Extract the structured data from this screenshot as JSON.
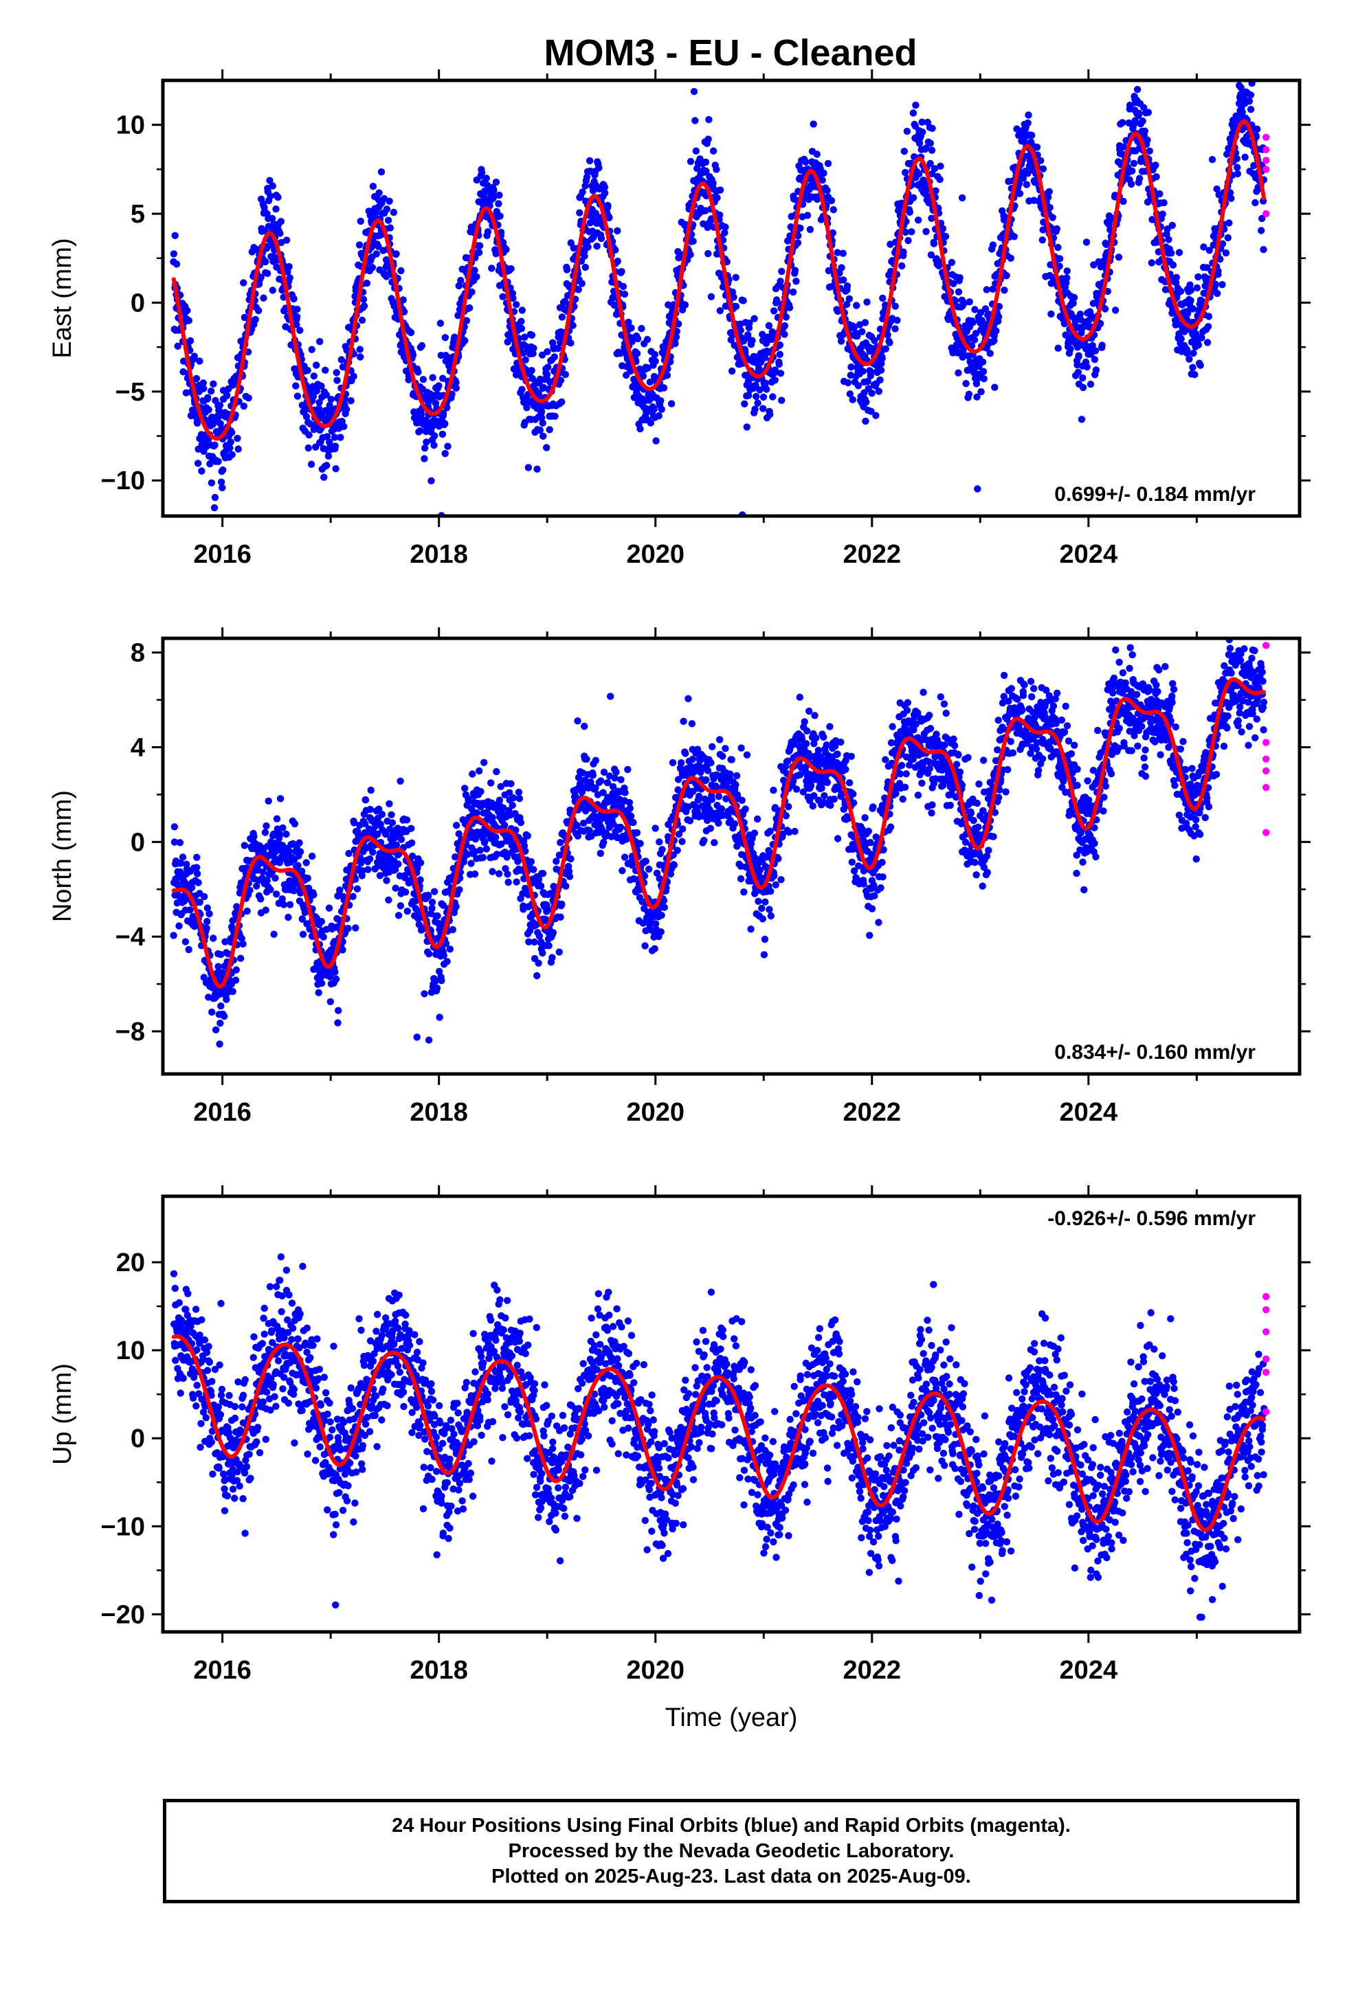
{
  "chart_data": [
    {
      "type": "scatter",
      "title": "MOM3  - EU - Cleaned",
      "ylabel": "East (mm)",
      "xlabel": "",
      "xlim": [
        2015.45,
        2025.95
      ],
      "ylim": [
        -12,
        12.5
      ],
      "yticks": [
        -10,
        -5,
        0,
        5,
        10
      ],
      "yticklabels": [
        "−10",
        "−5",
        "0",
        "5",
        "10"
      ],
      "xticks": [
        2016,
        2018,
        2020,
        2022,
        2024
      ],
      "xticklabels": [
        "2016",
        "2018",
        "2020",
        "2022",
        "2024"
      ],
      "annotation": "0.699+/- 0.184 mm/yr",
      "annotation_position": "bottom-right",
      "model": {
        "start": 2015.55,
        "end": 2025.62,
        "offset": -3.0,
        "rate": 0.699,
        "amp1": 5.6,
        "phase1": 0.44,
        "amp2": 0.7,
        "phase2": 0.3,
        "t0": 2015.55
      },
      "noise_sd": 1.35,
      "outlier_sd": 3.0,
      "final_count": 3300,
      "rapid_points": [
        {
          "x": 2025.64,
          "y": 9.3
        },
        {
          "x": 2025.64,
          "y": 8.6
        },
        {
          "x": 2025.64,
          "y": 8.0
        },
        {
          "x": 2025.64,
          "y": 7.5
        },
        {
          "x": 2025.64,
          "y": 5.0
        }
      ],
      "legend": "none",
      "grid": false
    },
    {
      "type": "scatter",
      "title": "",
      "ylabel": "North (mm)",
      "xlabel": "",
      "xlim": [
        2015.45,
        2025.95
      ],
      "ylim": [
        -9.8,
        8.6
      ],
      "yticks": [
        -8,
        -4,
        0,
        4,
        8
      ],
      "yticklabels": [
        "−8",
        "−4",
        "0",
        "4",
        "8"
      ],
      "xticks": [
        2016,
        2018,
        2020,
        2022,
        2024
      ],
      "xticklabels": [
        "2016",
        "2018",
        "2020",
        "2022",
        "2024"
      ],
      "annotation": "0.834+/- 0.160 mm/yr",
      "annotation_position": "bottom-right",
      "model": {
        "start": 2015.55,
        "end": 2025.62,
        "offset": -3.3,
        "rate": 0.834,
        "amp1": 2.3,
        "phase1": 0.46,
        "amp2": 0.9,
        "phase2": 0.12,
        "t0": 2015.55
      },
      "noise_sd": 0.95,
      "outlier_sd": 2.2,
      "final_count": 3300,
      "rapid_points": [
        {
          "x": 2025.64,
          "y": 8.3
        },
        {
          "x": 2025.64,
          "y": 4.2
        },
        {
          "x": 2025.64,
          "y": 3.5
        },
        {
          "x": 2025.64,
          "y": 3.0
        },
        {
          "x": 2025.64,
          "y": 2.3
        },
        {
          "x": 2025.64,
          "y": 0.4
        }
      ],
      "legend": "none",
      "grid": false
    },
    {
      "type": "scatter",
      "title": "",
      "ylabel": "Up (mm)",
      "xlabel": "Time (year)",
      "xlim": [
        2015.45,
        2025.95
      ],
      "ylim": [
        -22,
        27.5
      ],
      "yticks": [
        -20,
        -10,
        0,
        10,
        20
      ],
      "yticklabels": [
        "−20",
        "−10",
        "0",
        "10",
        "20"
      ],
      "xticks": [
        2016,
        2018,
        2020,
        2022,
        2024
      ],
      "xticklabels": [
        "2016",
        "2018",
        "2020",
        "2022",
        "2024"
      ],
      "annotation": "-0.926+/- 0.596 mm/yr",
      "annotation_position": "top-right",
      "model": {
        "start": 2015.55,
        "end": 2025.62,
        "offset": 5.6,
        "rate": -0.926,
        "amp1": 6.6,
        "phase1": 0.58,
        "amp2": 0.6,
        "phase2": 0.2,
        "t0": 2015.55
      },
      "noise_sd": 3.6,
      "outlier_sd": 6.0,
      "final_count": 3300,
      "rapid_points": [
        {
          "x": 2025.64,
          "y": 16.1
        },
        {
          "x": 2025.64,
          "y": 14.6
        },
        {
          "x": 2025.64,
          "y": 12.1
        },
        {
          "x": 2025.64,
          "y": 9.0
        },
        {
          "x": 2025.64,
          "y": 7.5
        },
        {
          "x": 2025.64,
          "y": 3.0
        }
      ],
      "legend": "none",
      "grid": false
    }
  ],
  "colors": {
    "final_orbits": "#0000ff",
    "rapid_orbits": "#ff00ff",
    "model_fit": "#ff0000",
    "axes": "#000000",
    "background": "#ffffff"
  },
  "footer": {
    "line1": "24 Hour Positions Using Final Orbits (blue) and Rapid Orbits (magenta).",
    "line2": "Processed by the Nevada Geodetic Laboratory.",
    "line3": "Plotted on 2025-Aug-23. Last data on 2025-Aug-09."
  }
}
